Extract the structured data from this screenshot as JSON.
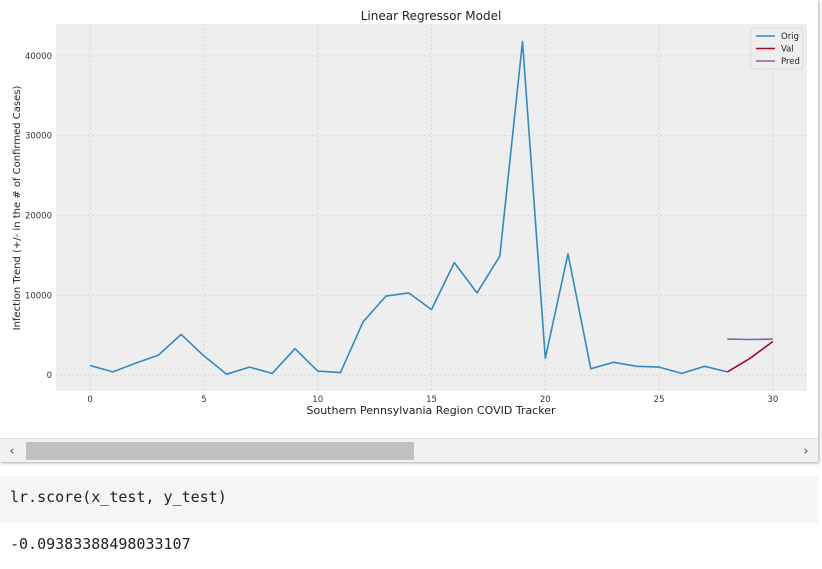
{
  "chart_data": {
    "type": "line",
    "title": "Linear Regressor Model",
    "xlabel": "Southern Pennsylvania Region COVID Tracker",
    "ylabel": "Infection Trend (+/- in the # of Confirmed Cases)",
    "xlim": [
      -1.5,
      31.5
    ],
    "ylim": [
      -2000,
      44000
    ],
    "xticks": [
      0,
      5,
      10,
      15,
      20,
      25,
      30
    ],
    "yticks": [
      0,
      10000,
      20000,
      30000,
      40000
    ],
    "grid": true,
    "legend_position": "top-right",
    "series": [
      {
        "name": "Orig",
        "color": "#348abd",
        "x": [
          0,
          1,
          2,
          3,
          4,
          5,
          6,
          7,
          8,
          9,
          10,
          11,
          12,
          13,
          14,
          15,
          16,
          17,
          18,
          19,
          20,
          21,
          22,
          23,
          24,
          25,
          26,
          27,
          28
        ],
        "y": [
          1200,
          400,
          1500,
          2500,
          5100,
          2400,
          100,
          1000,
          200,
          3300,
          500,
          300,
          6700,
          9900,
          10300,
          8200,
          14100,
          10300,
          14900,
          41800,
          2100,
          15200,
          800,
          1600,
          1100,
          1000,
          200,
          1100,
          400
        ]
      },
      {
        "name": "Val",
        "color": "#a60628",
        "x": [
          28,
          29,
          30
        ],
        "y": [
          400,
          2100,
          4200
        ]
      },
      {
        "name": "Pred",
        "color": "#7a68a6",
        "x": [
          28,
          29,
          30
        ],
        "y": [
          4500,
          4450,
          4500
        ]
      }
    ]
  },
  "notebook": {
    "input_code": "lr.score(x_test, y_test)",
    "output": "-0.09383388498033107",
    "scroll_left_glyph": "‹",
    "scroll_right_glyph": "›"
  }
}
